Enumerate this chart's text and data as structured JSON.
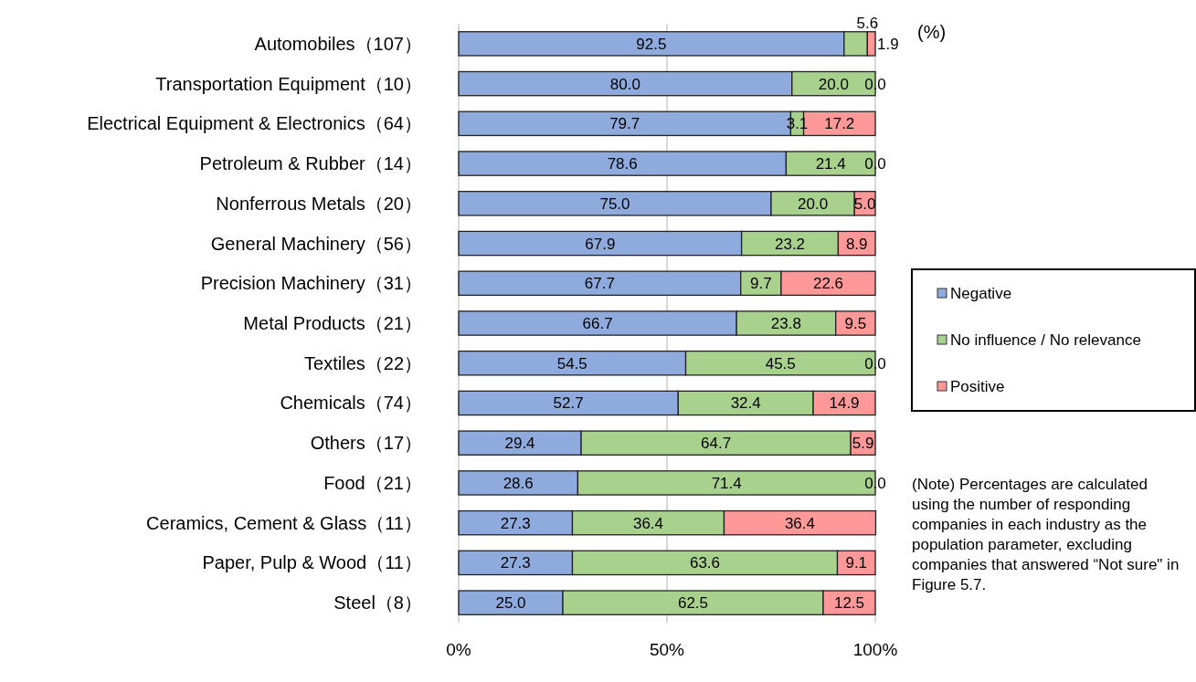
{
  "chart_data": {
    "type": "bar",
    "orientation": "horizontal",
    "stacked": true,
    "categories": [
      "Automobiles（107）",
      "Transportation Equipment（10）",
      "Electrical Equipment & Electronics（64）",
      "Petroleum & Rubber（14）",
      "Nonferrous Metals（20）",
      "General Machinery（56）",
      "Precision Machinery（31）",
      "Metal Products（21）",
      "Textiles（22）",
      "Chemicals（74）",
      "Others（17）",
      "Food（21）",
      "Ceramics, Cement & Glass（11）",
      "Paper, Pulp & Wood（11）",
      "Steel（8）"
    ],
    "series": [
      {
        "name": "Negative",
        "color": "#8faadc",
        "values": [
          92.5,
          80.0,
          79.7,
          78.6,
          75.0,
          67.9,
          67.7,
          66.7,
          54.5,
          52.7,
          29.4,
          28.6,
          27.3,
          27.3,
          25.0
        ],
        "value_labels": [
          "92.5",
          "80.0",
          "79.7",
          "78.6",
          "75.0",
          "67.9",
          "67.7",
          "66.7",
          "54.5",
          "52.7",
          "29.4",
          "28.6",
          "27.3",
          "27.3",
          "25.0"
        ]
      },
      {
        "name": "No influence / No relevance",
        "color": "#a9d18e",
        "values": [
          5.6,
          20.0,
          3.1,
          21.4,
          20.0,
          23.2,
          9.7,
          23.8,
          45.5,
          32.4,
          64.7,
          71.4,
          36.4,
          63.6,
          62.5
        ],
        "value_labels": [
          null,
          "20.0",
          "3.1",
          "21.4",
          "20.0",
          "23.2",
          "9.7",
          "23.8",
          "45.5",
          "32.4",
          "64.7",
          "71.4",
          "36.4",
          "63.6",
          "62.5"
        ]
      },
      {
        "name": "Positive",
        "color": "#ff9999",
        "values": [
          1.9,
          0.0,
          17.2,
          0.0,
          5.0,
          8.9,
          22.6,
          9.5,
          0.0,
          14.9,
          5.9,
          0.0,
          36.4,
          9.1,
          12.5
        ],
        "value_labels": [
          null,
          "0.0",
          "17.2",
          "0.0",
          "5.0",
          "8.9",
          "22.6",
          "9.5",
          "0.0",
          "14.9",
          "5.9",
          "0.0",
          "36.4",
          "9.1",
          "12.5"
        ]
      }
    ],
    "xlim": [
      0,
      100
    ],
    "xticks": [
      {
        "value": 0,
        "label": "0%"
      },
      {
        "value": 50,
        "label": "50%"
      },
      {
        "value": 100,
        "label": "100%"
      }
    ],
    "grid": "x",
    "legend": "right",
    "annotations": [
      {
        "text": "5.6",
        "x": 98.1,
        "y": "Automobiles（107）"
      },
      {
        "text": "1.9",
        "x": 100,
        "y": "Automobiles（107）"
      },
      "(%)",
      "(Note) Percentages are calculated using the number of responding companies in each industry as the population parameter, excluding companies that answered “Not sure\" in Figure 5.7."
    ]
  }
}
